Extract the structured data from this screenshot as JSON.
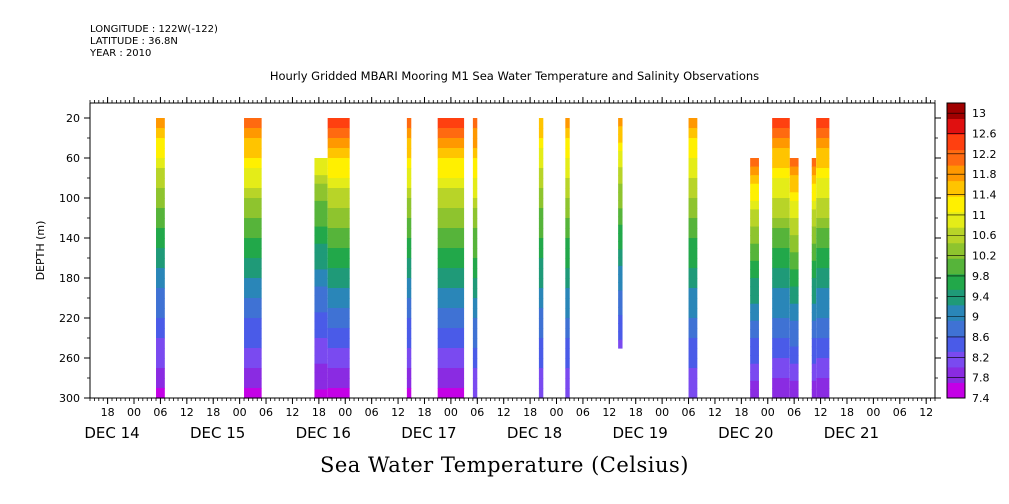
{
  "header": {
    "longitude": "LONGITUDE : 122W(-122)",
    "latitude": "LATITUDE : 36.8N",
    "year": "YEAR : 2010"
  },
  "chart_data": {
    "type": "heatmap",
    "title": "Hourly Gridded MBARI Mooring M1 Sea Water Temperature and Salinity Observations",
    "xlabel": "Sea Water Temperature (Celsius)",
    "ylabel": "DEPTH (m)",
    "y_ticks": [
      20,
      60,
      100,
      140,
      180,
      220,
      260,
      300
    ],
    "ylim": [
      300,
      5
    ],
    "x_hour_ticks": [
      "18",
      "00",
      "06",
      "12",
      "18",
      "00",
      "06",
      "12",
      "18",
      "00",
      "06",
      "12",
      "18",
      "00",
      "06",
      "12",
      "18",
      "00",
      "06",
      "12",
      "18",
      "00",
      "06",
      "12",
      "18",
      "00",
      "06",
      "12",
      "18",
      "00",
      "06",
      "12"
    ],
    "x_day_labels": [
      "DEC 14",
      "DEC 15",
      "DEC 16",
      "DEC 17",
      "DEC 18",
      "DEC 19",
      "DEC 20",
      "DEC 21"
    ],
    "colorbar_labels": [
      "13",
      "12.6",
      "12.2",
      "11.8",
      "11.4",
      "11",
      "10.6",
      "10.2",
      "9.8",
      "9.4",
      "9",
      "8.6",
      "8.2",
      "7.8",
      "7.4"
    ],
    "colorbar_range": [
      7.4,
      13.2
    ],
    "colors": [
      "#c400e6",
      "#8a2be2",
      "#7a4af0",
      "#4a5be8",
      "#3f72d4",
      "#2a86b8",
      "#1f9a78",
      "#22a84a",
      "#56b43a",
      "#8ec42e",
      "#b8d428",
      "#e4ec18",
      "#fff000",
      "#ffc400",
      "#ff9800",
      "#ff6a10",
      "#ff4010",
      "#e01010",
      "#a00000"
    ],
    "observation_columns": [
      {
        "start": "DEC 15 05:00",
        "end": "DEC 15 07:00",
        "top_depth": 20,
        "bottom_depth": 300,
        "surface_temp": 12.0,
        "bottom_temp": 7.6
      },
      {
        "start": "DEC 16 01:00",
        "end": "DEC 16 05:00",
        "top_depth": 20,
        "bottom_depth": 300,
        "surface_temp": 12.4,
        "bottom_temp": 7.6
      },
      {
        "start": "DEC 16 17:00",
        "end": "DEC 16 20:00",
        "top_depth": 60,
        "bottom_depth": 300,
        "surface_temp": 11.2,
        "bottom_temp": 7.6
      },
      {
        "start": "DEC 16 20:00",
        "end": "DEC 17 01:00",
        "top_depth": 20,
        "bottom_depth": 300,
        "surface_temp": 12.6,
        "bottom_temp": 7.6
      },
      {
        "start": "DEC 17 14:00",
        "end": "DEC 17 15:00",
        "top_depth": 20,
        "bottom_depth": 300,
        "surface_temp": 12.4,
        "bottom_temp": 7.6
      },
      {
        "start": "DEC 17 21:00",
        "end": "DEC 18 03:00",
        "top_depth": 20,
        "bottom_depth": 300,
        "surface_temp": 12.6,
        "bottom_temp": 7.6
      },
      {
        "start": "DEC 18 05:00",
        "end": "DEC 18 06:00",
        "top_depth": 20,
        "bottom_depth": 300,
        "surface_temp": 12.4,
        "bottom_temp": 8.0
      },
      {
        "start": "DEC 18 20:00",
        "end": "DEC 18 21:00",
        "top_depth": 20,
        "bottom_depth": 300,
        "surface_temp": 11.8,
        "bottom_temp": 8.0
      },
      {
        "start": "DEC 19 02:00",
        "end": "DEC 19 03:00",
        "top_depth": 20,
        "bottom_depth": 300,
        "surface_temp": 12.0,
        "bottom_temp": 8.0
      },
      {
        "start": "DEC 19 14:00",
        "end": "DEC 19 15:00",
        "top_depth": 20,
        "bottom_depth": 250,
        "surface_temp": 12.0,
        "bottom_temp": 8.2
      },
      {
        "start": "DEC 20 06:00",
        "end": "DEC 20 08:00",
        "top_depth": 20,
        "bottom_depth": 300,
        "surface_temp": 12.0,
        "bottom_temp": 8.0
      },
      {
        "start": "DEC 20 20:00",
        "end": "DEC 20 22:00",
        "top_depth": 60,
        "bottom_depth": 300,
        "surface_temp": 12.2,
        "bottom_temp": 7.8
      },
      {
        "start": "DEC 21 01:00",
        "end": "DEC 21 05:00",
        "top_depth": 20,
        "bottom_depth": 300,
        "surface_temp": 12.6,
        "bottom_temp": 7.8
      },
      {
        "start": "DEC 21 05:00",
        "end": "DEC 21 07:00",
        "top_depth": 60,
        "bottom_depth": 300,
        "surface_temp": 12.4,
        "bottom_temp": 7.8
      },
      {
        "start": "DEC 21 10:00",
        "end": "DEC 21 11:00",
        "top_depth": 60,
        "bottom_depth": 300,
        "surface_temp": 12.2,
        "bottom_temp": 7.8
      },
      {
        "start": "DEC 21 11:00",
        "end": "DEC 21 14:00",
        "top_depth": 20,
        "bottom_depth": 300,
        "surface_temp": 12.6,
        "bottom_temp": 7.8
      }
    ]
  }
}
